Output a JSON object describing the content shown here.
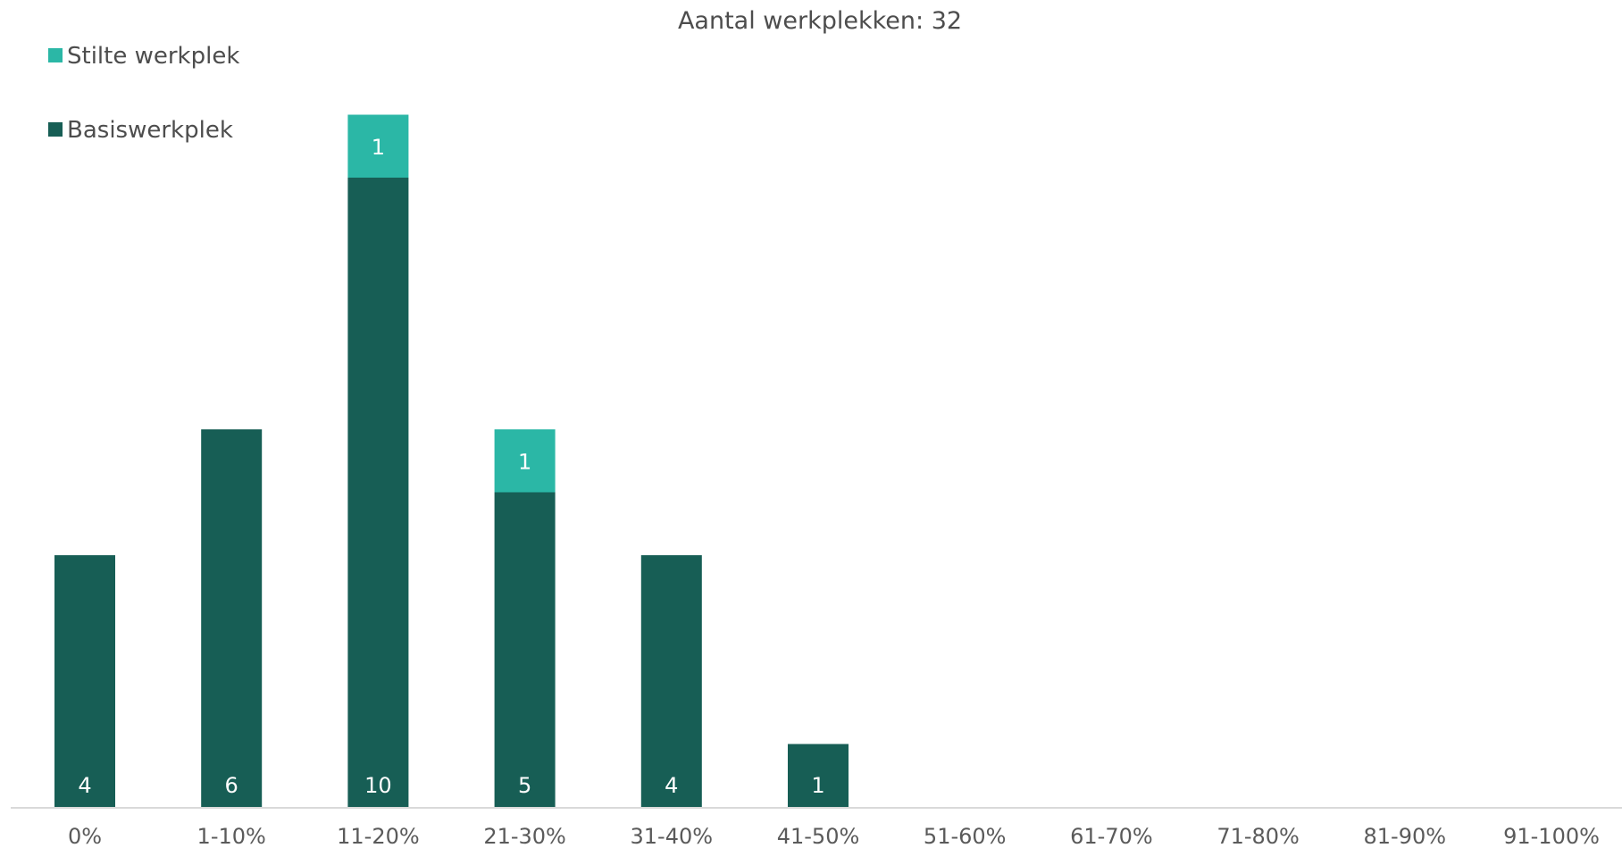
{
  "chart_data": {
    "type": "bar",
    "stacked": true,
    "title": "Aantal werkplekken: 32",
    "xlabel": "",
    "ylabel": "",
    "ylim": [
      0,
      11
    ],
    "grid": false,
    "legend_position": "top-left",
    "categories": [
      "0%",
      "1-10%",
      "11-20%",
      "21-30%",
      "31-40%",
      "41-50%",
      "51-60%",
      "61-70%",
      "71-80%",
      "81-90%",
      "91-100%"
    ],
    "series": [
      {
        "name": "Basiswerkplek",
        "color": "#175e55",
        "values": [
          4,
          6,
          10,
          5,
          4,
          1,
          0,
          0,
          0,
          0,
          0
        ]
      },
      {
        "name": "Stilte werkplek",
        "color": "#2bb7a6",
        "values": [
          0,
          0,
          1,
          1,
          0,
          0,
          0,
          0,
          0,
          0,
          0
        ]
      }
    ],
    "legend_order": [
      "Stilte werkplek",
      "Basiswerkplek"
    ]
  }
}
